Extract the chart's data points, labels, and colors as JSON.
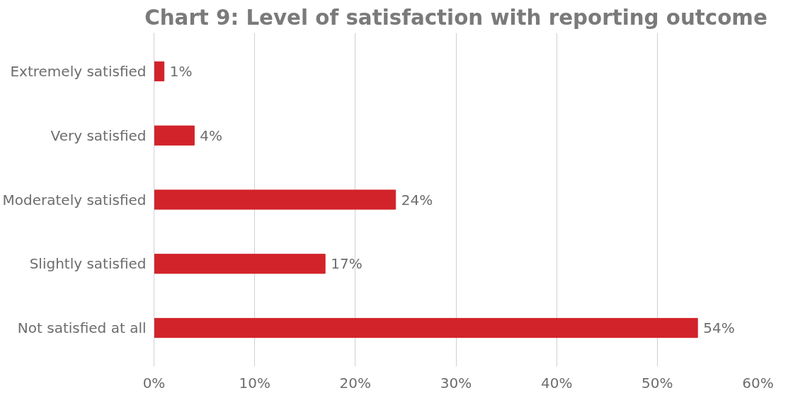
{
  "chart_data": {
    "type": "bar",
    "orientation": "horizontal",
    "title": "Chart 9: Level of satisfaction with reporting outcome",
    "categories": [
      "Extremely satisfied",
      "Very satisfied",
      "Moderately satisfied",
      "Slightly satisfied",
      "Not satisfied at all"
    ],
    "values": [
      1,
      4,
      24,
      17,
      54
    ],
    "value_labels": [
      "1%",
      "4%",
      "24%",
      "17%",
      "54%"
    ],
    "color": "#d2232a",
    "xlim": [
      0,
      60
    ],
    "xticks": [
      {
        "value": 0,
        "label": "0%"
      },
      {
        "value": 10,
        "label": "10%"
      },
      {
        "value": 20,
        "label": "20%"
      },
      {
        "value": 30,
        "label": "30%"
      },
      {
        "value": 40,
        "label": "40%"
      },
      {
        "value": 50,
        "label": "50%"
      },
      {
        "value": 60,
        "label": "60%"
      }
    ],
    "grid": "x"
  }
}
